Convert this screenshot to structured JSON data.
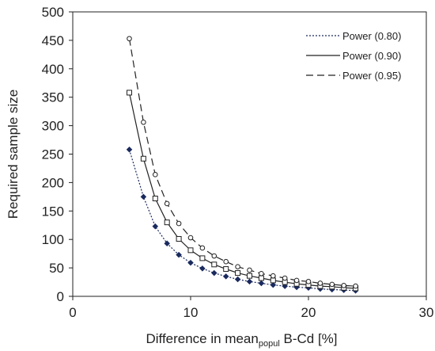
{
  "chart_data": {
    "type": "line",
    "title": "",
    "xlabel_main": "Difference in mean",
    "xlabel_sub": "popul",
    "xlabel_end": " B-Cd [%]",
    "ylabel": "Required sample size",
    "xlim": [
      0,
      30
    ],
    "ylim": [
      0,
      500
    ],
    "xticks": [
      0,
      10,
      20,
      30
    ],
    "yticks": [
      0,
      50,
      100,
      150,
      200,
      250,
      300,
      350,
      400,
      450,
      500
    ],
    "grid": false,
    "legend_position": "top-right",
    "x": [
      4.8,
      6,
      7,
      8,
      9,
      10,
      11,
      12,
      13,
      14,
      15,
      16,
      17,
      18,
      19,
      20,
      21,
      22,
      23,
      24
    ],
    "series": [
      {
        "name": "Power (0.80)",
        "line_style": "dotted",
        "marker": "diamond-filled",
        "color": "#1a2a5e",
        "values": [
          258,
          175,
          123,
          93,
          73,
          59,
          49,
          41,
          35,
          30,
          26,
          23,
          20,
          18,
          16,
          15,
          13,
          12,
          11,
          10
        ]
      },
      {
        "name": "Power (0.90)",
        "line_style": "solid",
        "marker": "square-open",
        "color": "#222222",
        "values": [
          358,
          242,
          172,
          130,
          101,
          81,
          67,
          56,
          48,
          41,
          36,
          32,
          28,
          25,
          22,
          20,
          18,
          17,
          15,
          14
        ]
      },
      {
        "name": "Power (0.95)",
        "line_style": "dashed",
        "marker": "circle-open",
        "color": "#222222",
        "values": [
          453,
          306,
          214,
          163,
          128,
          103,
          85,
          71,
          61,
          52,
          46,
          40,
          36,
          32,
          28,
          26,
          23,
          21,
          19,
          18
        ]
      }
    ]
  }
}
